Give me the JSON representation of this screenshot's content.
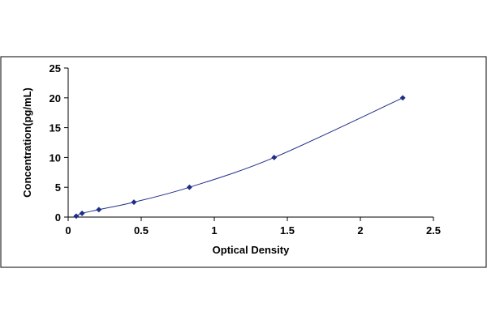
{
  "chart_data": {
    "type": "scatter",
    "title": "",
    "xlabel": "Optical Density",
    "ylabel": "Concentration(pg/mL)",
    "xlim": [
      0,
      2.5
    ],
    "ylim": [
      0,
      25
    ],
    "x_ticks": [
      0,
      0.5,
      1,
      1.5,
      2,
      2.5
    ],
    "x_tick_labels": [
      "0",
      "0.5",
      "1",
      "1.5",
      "2",
      "2.5"
    ],
    "y_ticks": [
      0,
      5,
      10,
      15,
      20,
      25
    ],
    "y_tick_labels": [
      "0",
      "5",
      "10",
      "15",
      "20",
      "25"
    ],
    "grid": false,
    "legend": "none",
    "series": [
      {
        "x": [
          0.055,
          0.095,
          0.21,
          0.45,
          0.83,
          1.41,
          2.29
        ],
        "y": [
          0.16,
          0.63,
          1.25,
          2.5,
          5,
          10,
          20
        ],
        "marker": "diamond",
        "fit_line": true
      }
    ],
    "colors": {
      "marker": "#1f2d86",
      "line": "#1f2d86",
      "axis": "#000000",
      "frame": "#000000"
    }
  }
}
